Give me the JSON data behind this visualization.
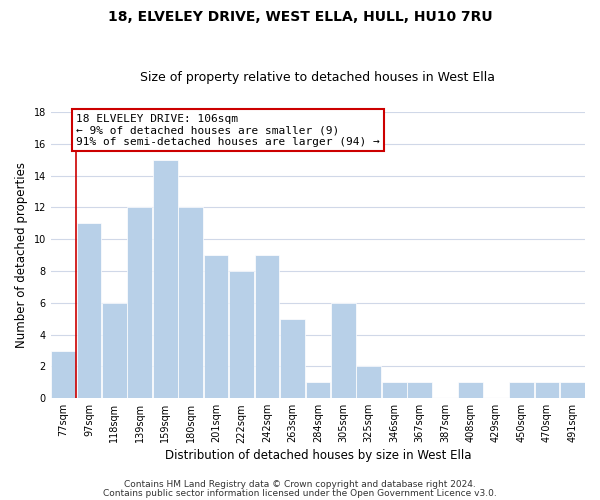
{
  "title": "18, ELVELEY DRIVE, WEST ELLA, HULL, HU10 7RU",
  "subtitle": "Size of property relative to detached houses in West Ella",
  "xlabel": "Distribution of detached houses by size in West Ella",
  "ylabel": "Number of detached properties",
  "bin_labels": [
    "77sqm",
    "97sqm",
    "118sqm",
    "139sqm",
    "159sqm",
    "180sqm",
    "201sqm",
    "222sqm",
    "242sqm",
    "263sqm",
    "284sqm",
    "305sqm",
    "325sqm",
    "346sqm",
    "367sqm",
    "387sqm",
    "408sqm",
    "429sqm",
    "450sqm",
    "470sqm",
    "491sqm"
  ],
  "bar_heights": [
    3,
    11,
    6,
    12,
    15,
    12,
    9,
    8,
    9,
    5,
    1,
    6,
    2,
    1,
    1,
    0,
    1,
    0,
    1,
    1,
    1
  ],
  "bar_color": "#b8d0e8",
  "bar_edge_color": "#ffffff",
  "highlight_line_color": "#cc0000",
  "annotation_line1": "18 ELVELEY DRIVE: 106sqm",
  "annotation_line2": "← 9% of detached houses are smaller (9)",
  "annotation_line3": "91% of semi-detached houses are larger (94) →",
  "annotation_box_color": "#ffffff",
  "annotation_box_edge": "#cc0000",
  "ylim": [
    0,
    18
  ],
  "yticks": [
    0,
    2,
    4,
    6,
    8,
    10,
    12,
    14,
    16,
    18
  ],
  "footer1": "Contains HM Land Registry data © Crown copyright and database right 2024.",
  "footer2": "Contains public sector information licensed under the Open Government Licence v3.0.",
  "background_color": "#ffffff",
  "grid_color": "#d0d8e8",
  "title_fontsize": 10,
  "subtitle_fontsize": 9,
  "axis_label_fontsize": 8.5,
  "tick_fontsize": 7,
  "annotation_fontsize": 8,
  "footer_fontsize": 6.5
}
